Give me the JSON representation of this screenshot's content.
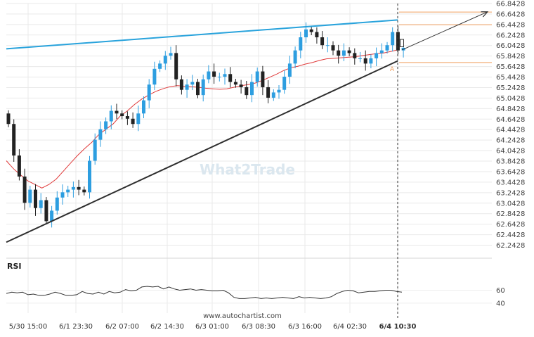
{
  "chart_data": [
    {
      "type": "candlestick",
      "title": "",
      "ylim": [
        62.1428,
        66.8428
      ],
      "y_ticks": [
        "66.8428",
        "66.6428",
        "66.4428",
        "66.2428",
        "66.0428",
        "65.8428",
        "65.6428",
        "65.4428",
        "65.2428",
        "65.0428",
        "64.8428",
        "64.6428",
        "64.4428",
        "64.2428",
        "64.0428",
        "63.8428",
        "63.6428",
        "63.4428",
        "63.2428",
        "63.0428",
        "62.8428",
        "62.6428",
        "62.4428",
        "62.2428"
      ],
      "x_ticks": [
        {
          "label": "5/30 15:00",
          "bold": false
        },
        {
          "label": "6/1 23:30",
          "bold": false
        },
        {
          "label": "6/2 07:00",
          "bold": false
        },
        {
          "label": "6/2 14:30",
          "bold": false
        },
        {
          "label": "6/3 01:00",
          "bold": false
        },
        {
          "label": "6/3 08:30",
          "bold": false
        },
        {
          "label": "6/3 16:00",
          "bold": false
        },
        {
          "label": "6/4 02:30",
          "bold": false
        },
        {
          "label": "6/4 10:30",
          "bold": true
        }
      ],
      "close_series": [
        64.55,
        63.95,
        63.55,
        63.05,
        63.3,
        62.95,
        63.1,
        62.7,
        62.9,
        63.15,
        63.25,
        63.3,
        63.35,
        63.3,
        63.25,
        63.85,
        64.25,
        64.45,
        64.6,
        64.8,
        64.75,
        64.7,
        64.65,
        64.55,
        64.75,
        65.0,
        65.3,
        65.6,
        65.7,
        65.85,
        65.9,
        65.4,
        65.2,
        65.3,
        65.35,
        65.1,
        65.4,
        65.55,
        65.45,
        65.45,
        65.5,
        65.35,
        65.3,
        65.25,
        65.1,
        65.35,
        65.55,
        65.25,
        65.05,
        65.15,
        65.2,
        65.45,
        65.7,
        65.95,
        66.2,
        66.35,
        66.3,
        66.2,
        66.05,
        66.05,
        65.95,
        65.85,
        65.95,
        65.9,
        65.8,
        65.8,
        65.7,
        65.8,
        65.9,
        65.95,
        66.05,
        66.3,
        65.95,
        66.0
      ],
      "moving_average": {
        "color": "#e03a3a",
        "values": [
          63.85,
          63.7,
          63.58,
          63.47,
          63.4,
          63.33,
          63.4,
          63.5,
          63.65,
          63.8,
          63.95,
          64.08,
          64.2,
          64.35,
          64.45,
          64.55,
          64.7,
          64.8,
          64.92,
          65.02,
          65.1,
          65.17,
          65.22,
          65.26,
          65.28,
          65.27,
          65.26,
          65.25,
          65.23,
          65.22,
          65.21,
          65.22,
          65.25,
          65.28,
          65.3,
          65.33,
          65.38,
          65.44,
          65.5,
          65.57,
          65.62,
          65.65,
          65.69,
          65.72,
          65.76,
          65.79,
          65.8,
          65.81,
          65.82,
          65.83,
          65.85,
          65.87,
          65.89,
          65.9,
          65.93,
          65.96
        ]
      },
      "trendlines": [
        {
          "name": "upper-resistance",
          "color": "#29a3dc",
          "start": 65.98,
          "end": 66.53
        },
        {
          "name": "lower-support",
          "color": "#2e2e2e",
          "start": 62.3,
          "end": 65.75
        }
      ],
      "levels": [
        {
          "name": "target-level",
          "value": 66.68,
          "color": "#f0a060"
        },
        {
          "name": "upper-level",
          "value": 66.44,
          "color": "#f0a060"
        },
        {
          "name": "lower-level",
          "value": 65.72,
          "color": "#f0a060"
        }
      ],
      "marker_label": "A",
      "watermark": "What2Trade",
      "footer": "www.autochartist.com",
      "colors": {
        "up": "#2d9ee0",
        "down": "#222222",
        "grid": "#e9e9e9",
        "axis_text": "#444444"
      }
    },
    {
      "type": "line",
      "title": "RSI",
      "ylim": [
        30,
        90
      ],
      "y_ticks": [
        "60",
        "40"
      ],
      "series": [
        {
          "values": [
            55,
            57,
            56,
            57,
            53,
            54,
            52,
            52,
            54,
            57,
            55,
            52,
            52,
            53,
            58,
            55,
            54,
            57,
            54,
            58,
            56,
            57,
            61,
            59,
            60,
            65,
            66,
            65,
            66,
            62,
            65,
            62,
            60,
            61,
            62,
            60,
            61,
            60,
            59,
            59,
            60,
            56,
            49,
            47,
            47,
            48,
            49,
            47,
            48,
            47,
            48,
            49,
            48,
            47,
            50,
            48,
            49,
            48,
            47,
            48,
            50,
            55,
            58,
            60,
            59,
            56,
            57,
            58,
            58,
            59,
            60,
            60,
            58,
            57
          ]
        }
      ],
      "color": "#333333"
    }
  ]
}
